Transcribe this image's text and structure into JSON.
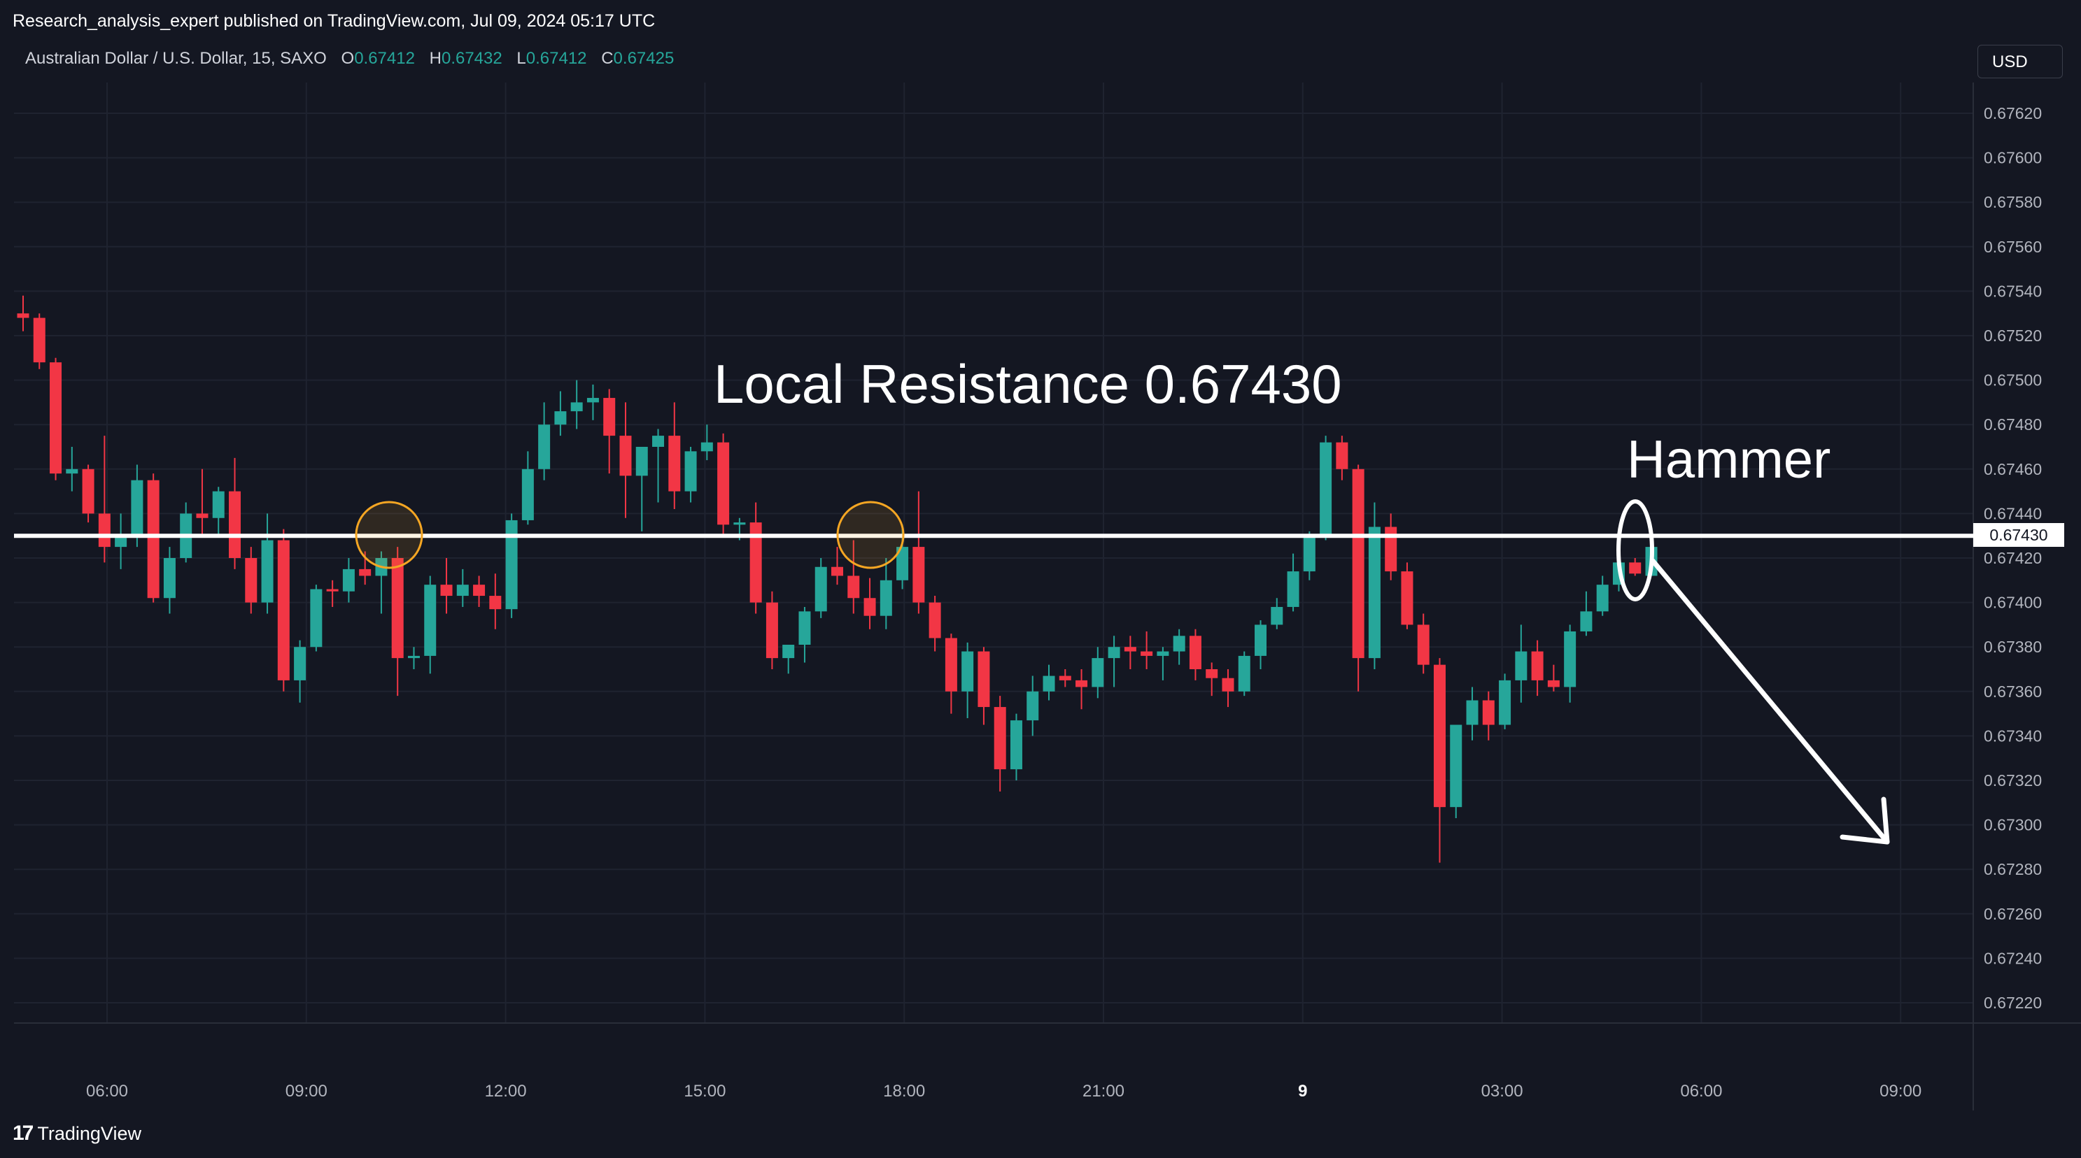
{
  "header": {
    "published_line": "Research_analysis_expert published on TradingView.com, Jul 09, 2024 05:17 UTC",
    "currency_button": "USD"
  },
  "legend": {
    "symbol": "Australian Dollar / U.S. Dollar, 15, SAXO",
    "open_label": "O",
    "open": "0.67412",
    "high_label": "H",
    "high": "0.67432",
    "low_label": "L",
    "low": "0.67412",
    "close_label": "C",
    "close": "0.67425"
  },
  "footer": {
    "logo_text": "TradingView"
  },
  "colors": {
    "background": "#141722",
    "up": "#26a69a",
    "down": "#f23645",
    "annotation": "#ffffff",
    "marker_circle": "#f5a623"
  },
  "icons": [
    "tradingview-logo-icon"
  ],
  "chart_data": {
    "type": "candlestick",
    "ylim": [
      0.6721,
      0.6763
    ],
    "yticks": [
      "0.67620",
      "0.67600",
      "0.67580",
      "0.67560",
      "0.67540",
      "0.67520",
      "0.67500",
      "0.67480",
      "0.67460",
      "0.67440",
      "0.67420",
      "0.67400",
      "0.67380",
      "0.67360",
      "0.67340",
      "0.67320",
      "0.67300",
      "0.67280",
      "0.67260",
      "0.67240",
      "0.67220"
    ],
    "xticks": [
      "06:00",
      "09:00",
      "12:00",
      "15:00",
      "18:00",
      "21:00",
      "9",
      "03:00",
      "06:00",
      "09:00"
    ],
    "price_label": "0.67430",
    "annotations": {
      "resistance_label": "Local Resistance 0.67430",
      "resistance_value": 0.6743,
      "pattern_label": "Hammer"
    },
    "candles": [
      [
        0.6753,
        0.67538,
        0.67522,
        0.67528
      ],
      [
        0.67528,
        0.6753,
        0.67505,
        0.67508
      ],
      [
        0.67508,
        0.6751,
        0.67455,
        0.67458
      ],
      [
        0.67458,
        0.6747,
        0.6745,
        0.6746
      ],
      [
        0.6746,
        0.67462,
        0.67436,
        0.6744
      ],
      [
        0.6744,
        0.67475,
        0.67418,
        0.67425
      ],
      [
        0.67425,
        0.6744,
        0.67415,
        0.6743
      ],
      [
        0.6743,
        0.67462,
        0.67425,
        0.67455
      ],
      [
        0.67455,
        0.67458,
        0.674,
        0.67402
      ],
      [
        0.67402,
        0.67425,
        0.67395,
        0.6742
      ],
      [
        0.6742,
        0.67445,
        0.67418,
        0.6744
      ],
      [
        0.6744,
        0.6746,
        0.6743,
        0.67438
      ],
      [
        0.67438,
        0.67452,
        0.6743,
        0.6745
      ],
      [
        0.6745,
        0.67465,
        0.67415,
        0.6742
      ],
      [
        0.6742,
        0.67425,
        0.67395,
        0.674
      ],
      [
        0.674,
        0.6744,
        0.67395,
        0.67428
      ],
      [
        0.67428,
        0.67433,
        0.6736,
        0.67365
      ],
      [
        0.67365,
        0.67383,
        0.67355,
        0.6738
      ],
      [
        0.6738,
        0.67408,
        0.67378,
        0.67406
      ],
      [
        0.67406,
        0.6741,
        0.67398,
        0.67405
      ],
      [
        0.67405,
        0.6742,
        0.674,
        0.67415
      ],
      [
        0.67415,
        0.67423,
        0.67408,
        0.67412
      ],
      [
        0.67412,
        0.67423,
        0.67395,
        0.6742
      ],
      [
        0.6742,
        0.67425,
        0.67358,
        0.67375
      ],
      [
        0.67375,
        0.6738,
        0.6737,
        0.67376
      ],
      [
        0.67376,
        0.67412,
        0.67368,
        0.67408
      ],
      [
        0.67408,
        0.6742,
        0.67395,
        0.67403
      ],
      [
        0.67403,
        0.67415,
        0.67398,
        0.67408
      ],
      [
        0.67408,
        0.67412,
        0.67398,
        0.67403
      ],
      [
        0.67403,
        0.67413,
        0.67388,
        0.67397
      ],
      [
        0.67397,
        0.6744,
        0.67393,
        0.67437
      ],
      [
        0.67437,
        0.67468,
        0.67435,
        0.6746
      ],
      [
        0.6746,
        0.6749,
        0.67455,
        0.6748
      ],
      [
        0.6748,
        0.67495,
        0.67475,
        0.67486
      ],
      [
        0.67486,
        0.675,
        0.67478,
        0.6749
      ],
      [
        0.6749,
        0.67498,
        0.67482,
        0.67492
      ],
      [
        0.67492,
        0.67496,
        0.67458,
        0.67475
      ],
      [
        0.67475,
        0.6749,
        0.67438,
        0.67457
      ],
      [
        0.67457,
        0.67468,
        0.67432,
        0.6747
      ],
      [
        0.6747,
        0.67478,
        0.67445,
        0.67475
      ],
      [
        0.67475,
        0.6749,
        0.67442,
        0.6745
      ],
      [
        0.6745,
        0.6747,
        0.67445,
        0.67468
      ],
      [
        0.67468,
        0.6748,
        0.67464,
        0.67472
      ],
      [
        0.67472,
        0.67476,
        0.6743,
        0.67435
      ],
      [
        0.67435,
        0.67438,
        0.67428,
        0.67436
      ],
      [
        0.67436,
        0.67445,
        0.67395,
        0.674
      ],
      [
        0.674,
        0.67405,
        0.6737,
        0.67375
      ],
      [
        0.67375,
        0.6738,
        0.67368,
        0.67381
      ],
      [
        0.67381,
        0.67398,
        0.67373,
        0.67396
      ],
      [
        0.67396,
        0.6742,
        0.67393,
        0.67416
      ],
      [
        0.67416,
        0.67425,
        0.67408,
        0.67412
      ],
      [
        0.67412,
        0.67428,
        0.67395,
        0.67402
      ],
      [
        0.67402,
        0.67411,
        0.67388,
        0.67394
      ],
      [
        0.67394,
        0.6742,
        0.67388,
        0.6741
      ],
      [
        0.6741,
        0.67435,
        0.67406,
        0.67425
      ],
      [
        0.67425,
        0.6745,
        0.67395,
        0.674
      ],
      [
        0.674,
        0.67403,
        0.67378,
        0.67384
      ],
      [
        0.67384,
        0.67386,
        0.6735,
        0.6736
      ],
      [
        0.6736,
        0.67382,
        0.67348,
        0.67378
      ],
      [
        0.67378,
        0.6738,
        0.67345,
        0.67353
      ],
      [
        0.67353,
        0.67358,
        0.67315,
        0.67325
      ],
      [
        0.67325,
        0.6735,
        0.6732,
        0.67347
      ],
      [
        0.67347,
        0.67367,
        0.6734,
        0.6736
      ],
      [
        0.6736,
        0.67372,
        0.67356,
        0.67367
      ],
      [
        0.67367,
        0.6737,
        0.67362,
        0.67365
      ],
      [
        0.67365,
        0.6737,
        0.67352,
        0.67362
      ],
      [
        0.67362,
        0.6738,
        0.67357,
        0.67375
      ],
      [
        0.67375,
        0.67385,
        0.67362,
        0.6738
      ],
      [
        0.6738,
        0.67385,
        0.6737,
        0.67378
      ],
      [
        0.67378,
        0.67387,
        0.6737,
        0.67376
      ],
      [
        0.67376,
        0.6738,
        0.67365,
        0.67378
      ],
      [
        0.67378,
        0.67388,
        0.67372,
        0.67385
      ],
      [
        0.67385,
        0.67388,
        0.67365,
        0.6737
      ],
      [
        0.6737,
        0.67373,
        0.67358,
        0.67366
      ],
      [
        0.67366,
        0.6737,
        0.67353,
        0.6736
      ],
      [
        0.6736,
        0.67378,
        0.67358,
        0.67376
      ],
      [
        0.67376,
        0.67392,
        0.6737,
        0.6739
      ],
      [
        0.6739,
        0.67402,
        0.67388,
        0.67398
      ],
      [
        0.67398,
        0.67422,
        0.67396,
        0.67414
      ],
      [
        0.67414,
        0.67432,
        0.6741,
        0.6743
      ],
      [
        0.6743,
        0.67475,
        0.67428,
        0.67472
      ],
      [
        0.67472,
        0.67475,
        0.67455,
        0.6746
      ],
      [
        0.6746,
        0.67462,
        0.6736,
        0.67375
      ],
      [
        0.67375,
        0.67445,
        0.6737,
        0.67434
      ],
      [
        0.67434,
        0.6744,
        0.6741,
        0.67414
      ],
      [
        0.67414,
        0.67418,
        0.67388,
        0.6739
      ],
      [
        0.6739,
        0.67395,
        0.67368,
        0.67372
      ],
      [
        0.67372,
        0.67375,
        0.67283,
        0.67308
      ],
      [
        0.67308,
        0.67345,
        0.67303,
        0.67345
      ],
      [
        0.67345,
        0.67362,
        0.67338,
        0.67356
      ],
      [
        0.67356,
        0.6736,
        0.67338,
        0.67345
      ],
      [
        0.67345,
        0.67368,
        0.67343,
        0.67365
      ],
      [
        0.67365,
        0.6739,
        0.67355,
        0.67378
      ],
      [
        0.67378,
        0.67383,
        0.67358,
        0.67365
      ],
      [
        0.67365,
        0.67372,
        0.6736,
        0.67362
      ],
      [
        0.67362,
        0.6739,
        0.67355,
        0.67387
      ],
      [
        0.67387,
        0.67405,
        0.67385,
        0.67396
      ],
      [
        0.67396,
        0.67412,
        0.67394,
        0.67408
      ],
      [
        0.67408,
        0.6742,
        0.67405,
        0.67418
      ],
      [
        0.67418,
        0.6742,
        0.67412,
        0.67413
      ],
      [
        0.67412,
        0.67432,
        0.67412,
        0.67425
      ]
    ]
  }
}
